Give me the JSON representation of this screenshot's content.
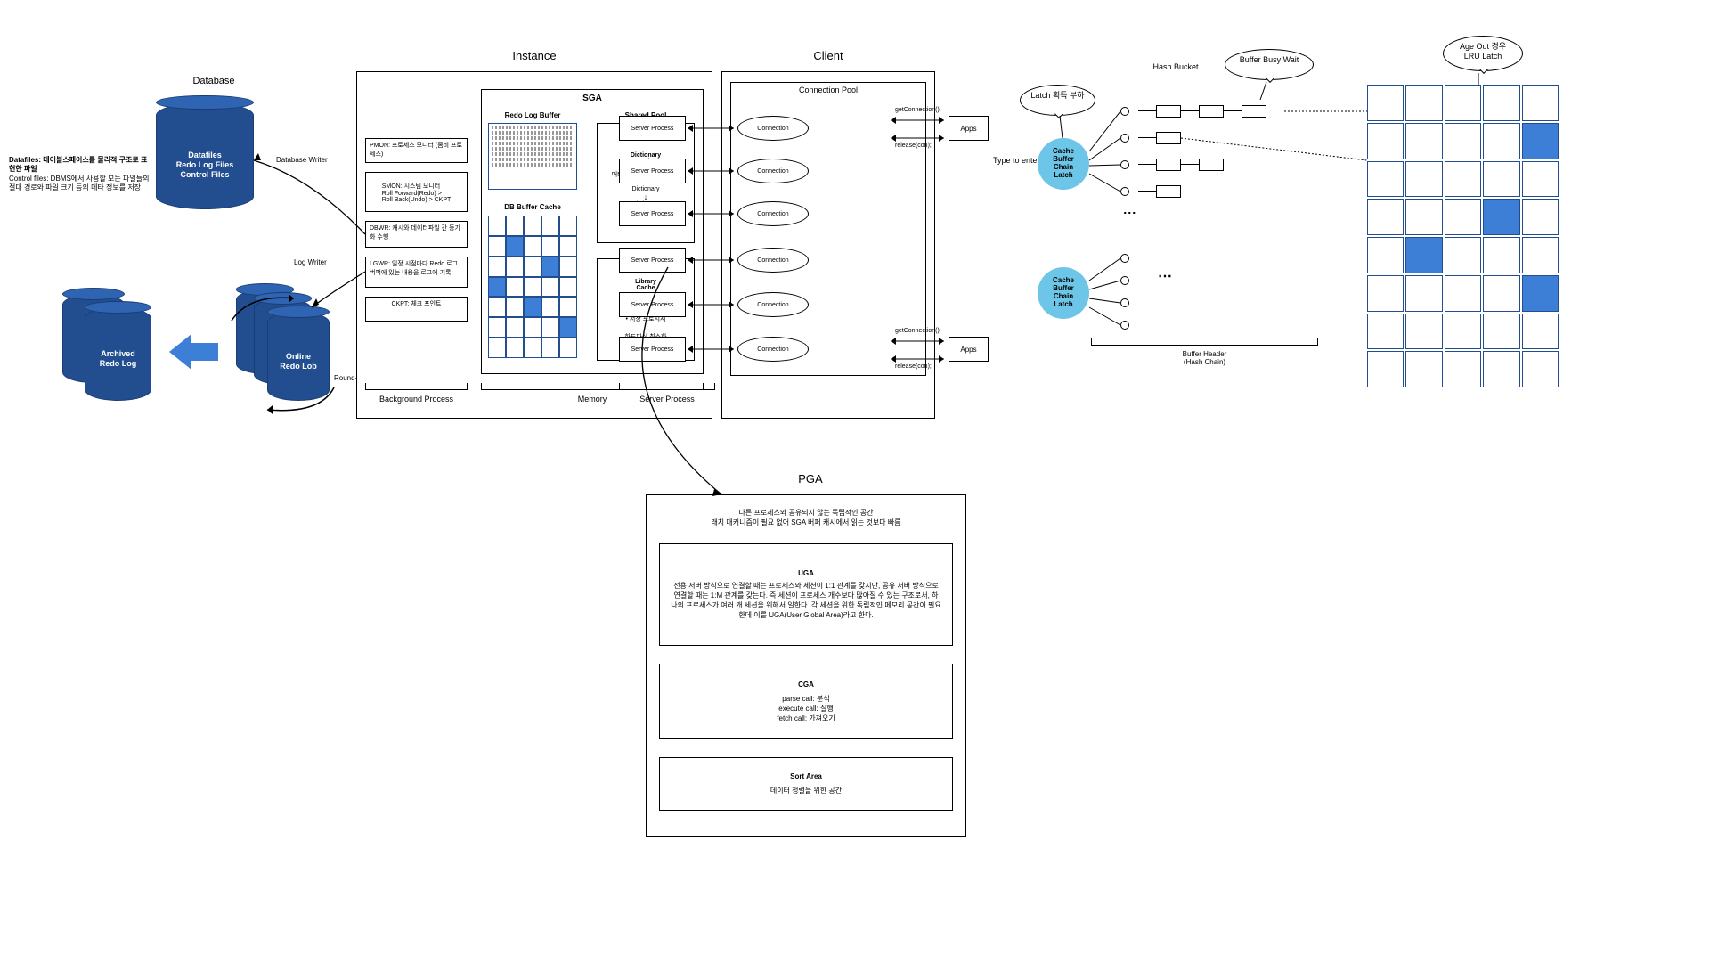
{
  "colors": {
    "cylinder": "#224e90",
    "cylinder_top": "#2f64b3",
    "blue_fill": "#3d7ed6",
    "latch": "#6dc5e8",
    "arrow_blue": "#3d7ed6"
  },
  "database": {
    "title": "Database",
    "main_cyl": "Datafiles\nRedo Log Files\nControl Files",
    "desc_datafiles": "Datafiles: 데이블스페이스를 물리적 구조로 표현한 파일",
    "desc_control": "Control files: DBMS에서 사용할 모든 파일들의 절대 경로와 파일 크기 등의 메타 정보를 저장",
    "archived": "Archived\nRedo Log",
    "online": "Online\nRedo Lob",
    "database_writer": "Database Writer",
    "log_writer": "Log Writer",
    "round_robin": "Round-Robin"
  },
  "instance": {
    "title": "Instance",
    "bg_process_label": "Background Process",
    "memory_label": "Memory",
    "pmon": "PMON: 프로세스 모니터 (좀비 프로세스)",
    "smon": "SMON: 시스템 모니터\nRoll Forward(Redo) >\nRoll Back(Undo) > CKPT",
    "dbwr": "DBWR: 캐시와 데이터파일 간 동기화 수행",
    "lgwr": "LGWR: 일정 시점마다 Redo 로그 버퍼에 있는 내용을 로그에 기록",
    "ckpt": "CKPT: 체크 포인트",
    "sga": {
      "title": "SGA",
      "redo_log_buffer": "Redo Log Buffer",
      "db_buffer_cache": "DB Buffer Cache",
      "shared_pool": "Shared Pool",
      "dict_cache": "Dictionary\nCache",
      "dict_desc": "매타 정보가 저장되는 영역",
      "dict_flow1": "Dictionary",
      "dict_flow2": "Dictionary\nCache",
      "lib_cache": "Library\nCache",
      "lib_items": "• SQL문\n• 실행계획\n• 저장 프로시저",
      "hard_parsing": "하드파싱 최소화",
      "buffer_grid": {
        "rows": 7,
        "cols": 5,
        "filled": [
          [
            1,
            1
          ],
          [
            2,
            3
          ],
          [
            3,
            0
          ],
          [
            4,
            2
          ],
          [
            5,
            4
          ]
        ]
      }
    }
  },
  "client": {
    "title": "Client",
    "conn_pool": "Connection Pool",
    "server_process": "Server Process",
    "connection": "Connection",
    "apps": "Apps",
    "get_conn": "getConnection();",
    "release": "release(con);",
    "server_process_label": "Server Process",
    "type_hint": "Type to enter text"
  },
  "pga": {
    "title": "PGA",
    "desc": "다른 프로세스와 공유되지 않는 독립적인 공간\n래치 매커니즘이 필요 없어 SGA 버퍼 캐시에서 읽는 것보다 빠름",
    "uga_title": "UGA",
    "uga_desc": "전용 서버 방식으로 연결할 때는 프로세스와 세션이 1:1 관계를 갖지만, 공유 서버 방식으로 연결할 때는 1:M 관계를 갖는다. 즉 세션이 프로세스 개수보다 많아질 수 있는 구조로서, 하나의 프로세스가 여러 개 세션을 위해서 일한다. 각 세션을 위한 독립적인 메모리 공간이 필요한데 이를 UGA(User Global Area)라고 한다.",
    "cga_title": "CGA",
    "cga_items": "parse call: 분석\nexecute call: 실행\nfetch call: 가져오기",
    "sort_title": "Sort Area",
    "sort_desc": "데이터 정렬을 위한 공간"
  },
  "right": {
    "latch_callout": "Latch 획득 부하",
    "hash_bucket": "Hash Bucket",
    "buffer_busy": "Buffer Busy Wait",
    "age_out": "Age Out 경우\nLRU Latch",
    "latch_label": "Cache\nBuffer\nChain\nLatch",
    "buffer_header": "Buffer Header\n(Hash Chain)",
    "grid": {
      "rows": 8,
      "cols": 5,
      "filled": [
        [
          1,
          4
        ],
        [
          3,
          3
        ],
        [
          4,
          1
        ],
        [
          5,
          4
        ]
      ]
    }
  }
}
